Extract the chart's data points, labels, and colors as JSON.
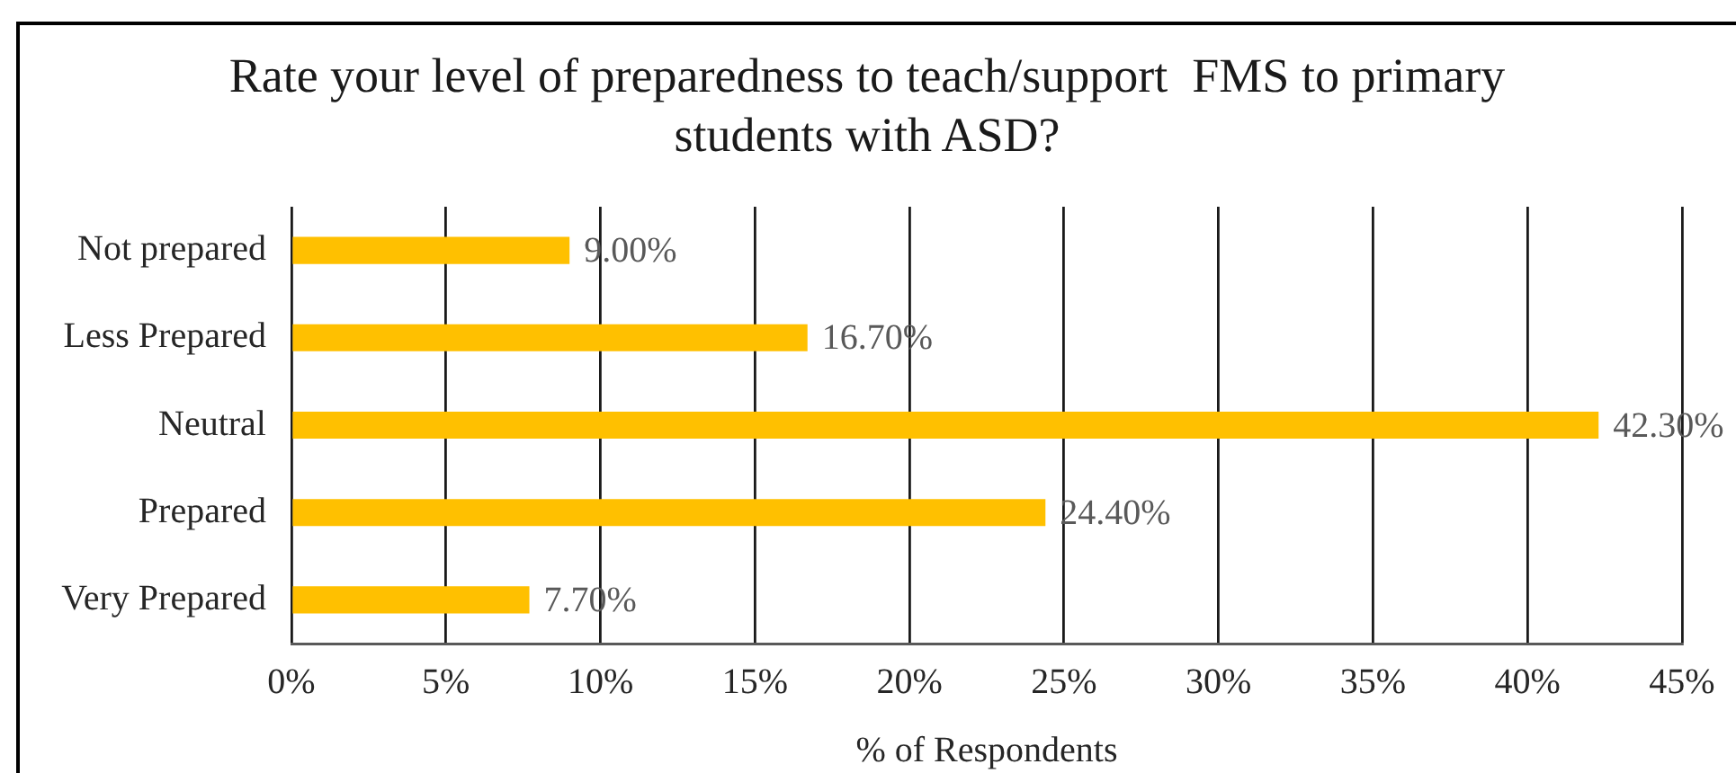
{
  "chart_data": {
    "type": "bar",
    "orientation": "horizontal",
    "title": "Rate your level of preparedness to teach/support  FMS to primary students with ASD?",
    "xlabel": "% of Respondents",
    "categories": [
      "Not prepared",
      "Less Prepared",
      "Neutral",
      "Prepared",
      "Very Prepared"
    ],
    "values": [
      9.0,
      16.7,
      42.3,
      24.4,
      7.7
    ],
    "value_labels": [
      "9.00%",
      "16.70%",
      "42.30%",
      "24.40%",
      "7.70%"
    ],
    "color": "#ffc000",
    "xlim": [
      0,
      45
    ],
    "xticks": [
      {
        "value": 0,
        "label": "0%"
      },
      {
        "value": 5,
        "label": "5%"
      },
      {
        "value": 10,
        "label": "10%"
      },
      {
        "value": 15,
        "label": "15%"
      },
      {
        "value": 20,
        "label": "20%"
      },
      {
        "value": 25,
        "label": "25%"
      },
      {
        "value": 30,
        "label": "30%"
      },
      {
        "value": 35,
        "label": "35%"
      },
      {
        "value": 40,
        "label": "40%"
      },
      {
        "value": 45,
        "label": "45%"
      }
    ],
    "grid": "x"
  }
}
